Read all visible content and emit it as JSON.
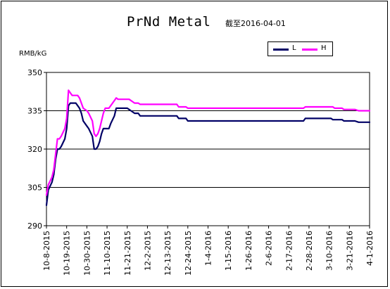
{
  "chart_data": {
    "type": "line",
    "title": "PrNd Metal",
    "subtitle": "截至2016-04-01",
    "ylabel": "RMB/kG",
    "ylim": [
      290,
      350
    ],
    "yticks": [
      290,
      305,
      320,
      335,
      350
    ],
    "grid": "horizontal",
    "legend_position": "top-right",
    "x_start": "2015-10-08",
    "x_end": "2016-04-01",
    "xtick_labels": [
      "10-8-2015",
      "10-19-2015",
      "10-30-2015",
      "11-10-2015",
      "11-21-2015",
      "12-2-2015",
      "12-13-2015",
      "12-24-2015",
      "1-4-2016",
      "1-15-2016",
      "1-26-2016",
      "2-6-2016",
      "2-17-2016",
      "2-28-2016",
      "3-10-2016",
      "3-21-2016",
      "4-1-2016"
    ],
    "xtick_dates": [
      "2015-10-08",
      "2015-10-19",
      "2015-10-30",
      "2015-11-10",
      "2015-11-21",
      "2015-12-02",
      "2015-12-13",
      "2015-12-24",
      "2016-01-04",
      "2016-01-15",
      "2016-01-26",
      "2016-02-06",
      "2016-02-17",
      "2016-02-28",
      "2016-03-10",
      "2016-03-21",
      "2016-04-01"
    ],
    "series": [
      {
        "name": "L",
        "color": "#000066",
        "points": [
          [
            "2015-10-08",
            298
          ],
          [
            "2015-10-09",
            304
          ],
          [
            "2015-10-11",
            307
          ],
          [
            "2015-10-12",
            310
          ],
          [
            "2015-10-13",
            316
          ],
          [
            "2015-10-14",
            320
          ],
          [
            "2015-10-15",
            320
          ],
          [
            "2015-10-16",
            321
          ],
          [
            "2015-10-18",
            324
          ],
          [
            "2015-10-19",
            328
          ],
          [
            "2015-10-20",
            337
          ],
          [
            "2015-10-21",
            338
          ],
          [
            "2015-10-24",
            338
          ],
          [
            "2015-10-25",
            337
          ],
          [
            "2015-10-26",
            336
          ],
          [
            "2015-10-27",
            334
          ],
          [
            "2015-10-28",
            331
          ],
          [
            "2015-10-30",
            329
          ],
          [
            "2015-10-31",
            328
          ],
          [
            "2015-11-02",
            325
          ],
          [
            "2015-11-03",
            320
          ],
          [
            "2015-11-04",
            320
          ],
          [
            "2015-11-05",
            321
          ],
          [
            "2015-11-06",
            323
          ],
          [
            "2015-11-07",
            326
          ],
          [
            "2015-11-08",
            328
          ],
          [
            "2015-11-11",
            328
          ],
          [
            "2015-11-12",
            330
          ],
          [
            "2015-11-14",
            333
          ],
          [
            "2015-11-15",
            336
          ],
          [
            "2015-11-21",
            336
          ],
          [
            "2015-11-23",
            335
          ],
          [
            "2015-11-25",
            334
          ],
          [
            "2015-11-27",
            334
          ],
          [
            "2015-11-28",
            333
          ],
          [
            "2015-12-18",
            333
          ],
          [
            "2015-12-19",
            332
          ],
          [
            "2015-12-23",
            332
          ],
          [
            "2015-12-24",
            331
          ],
          [
            "2016-02-25",
            331
          ],
          [
            "2016-02-26",
            332
          ],
          [
            "2016-03-11",
            332
          ],
          [
            "2016-03-12",
            331.5
          ],
          [
            "2016-03-17",
            331.5
          ],
          [
            "2016-03-18",
            331
          ],
          [
            "2016-03-24",
            331
          ],
          [
            "2016-03-26",
            330.5
          ],
          [
            "2016-04-01",
            330.5
          ]
        ]
      },
      {
        "name": "H",
        "color": "#FF00FF",
        "points": [
          [
            "2015-10-08",
            302
          ],
          [
            "2015-10-09",
            306
          ],
          [
            "2015-10-11",
            309
          ],
          [
            "2015-10-12",
            312
          ],
          [
            "2015-10-13",
            318
          ],
          [
            "2015-10-14",
            324
          ],
          [
            "2015-10-15",
            324
          ],
          [
            "2015-10-16",
            325
          ],
          [
            "2015-10-18",
            328
          ],
          [
            "2015-10-19",
            332
          ],
          [
            "2015-10-20",
            343
          ],
          [
            "2015-10-21",
            342
          ],
          [
            "2015-10-22",
            341
          ],
          [
            "2015-10-25",
            341
          ],
          [
            "2015-10-26",
            340
          ],
          [
            "2015-10-27",
            338
          ],
          [
            "2015-10-28",
            336
          ],
          [
            "2015-10-30",
            335
          ],
          [
            "2015-10-31",
            334
          ],
          [
            "2015-11-02",
            331
          ],
          [
            "2015-11-03",
            326
          ],
          [
            "2015-11-04",
            325
          ],
          [
            "2015-11-05",
            326
          ],
          [
            "2015-11-06",
            328
          ],
          [
            "2015-11-07",
            331
          ],
          [
            "2015-11-08",
            334
          ],
          [
            "2015-11-09",
            336
          ],
          [
            "2015-11-11",
            336
          ],
          [
            "2015-11-12",
            337
          ],
          [
            "2015-11-13",
            338
          ],
          [
            "2015-11-14",
            339
          ],
          [
            "2015-11-15",
            340
          ],
          [
            "2015-11-16",
            339.5
          ],
          [
            "2015-11-22",
            339.5
          ],
          [
            "2015-11-25",
            338
          ],
          [
            "2015-11-27",
            338
          ],
          [
            "2015-11-28",
            337.5
          ],
          [
            "2015-12-18",
            337.5
          ],
          [
            "2015-12-19",
            336.5
          ],
          [
            "2015-12-23",
            336.5
          ],
          [
            "2015-12-24",
            336
          ],
          [
            "2016-02-25",
            336
          ],
          [
            "2016-02-26",
            336.5
          ],
          [
            "2016-03-12",
            336.5
          ],
          [
            "2016-03-13",
            336
          ],
          [
            "2016-03-17",
            336
          ],
          [
            "2016-03-18",
            335.5
          ],
          [
            "2016-03-24",
            335.5
          ],
          [
            "2016-03-26",
            335
          ],
          [
            "2016-04-01",
            335
          ]
        ]
      }
    ]
  }
}
